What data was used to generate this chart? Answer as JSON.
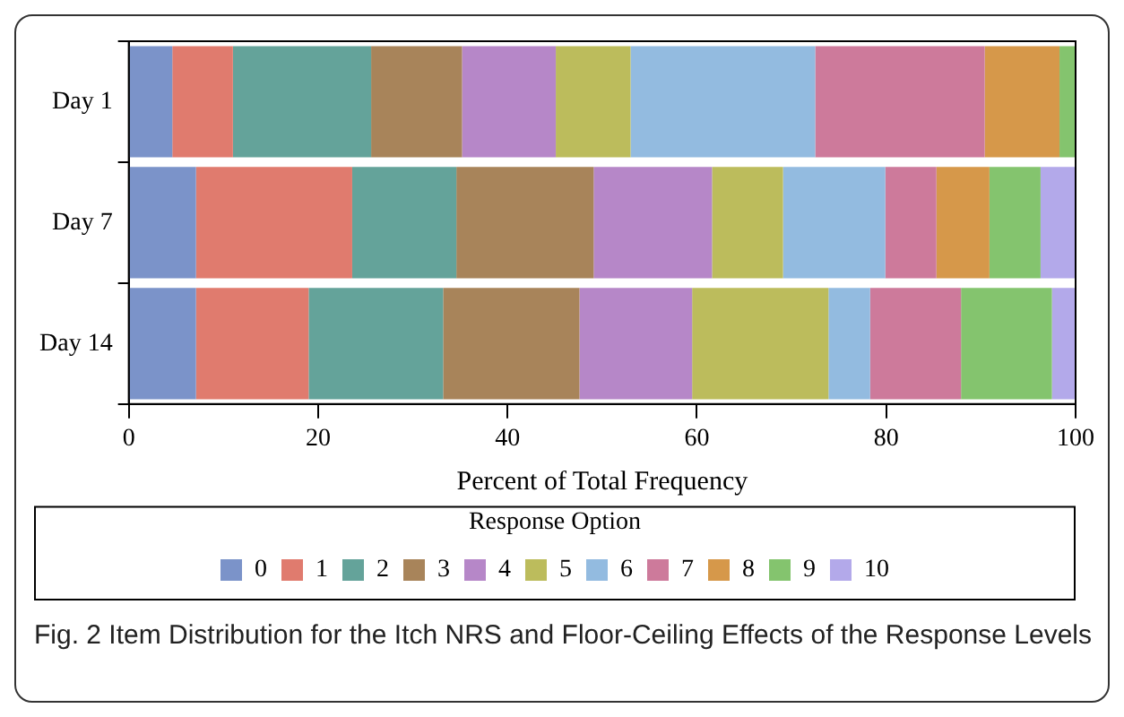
{
  "chart_data": {
    "type": "bar",
    "orientation": "horizontal",
    "stacked": true,
    "categories": [
      "Day 1",
      "Day 7",
      "Day 14"
    ],
    "xlabel": "Percent of Total Frequency",
    "xlim": [
      0,
      100
    ],
    "xticks": [
      0,
      20,
      40,
      60,
      80,
      100
    ],
    "grid": false,
    "legend": "bottom",
    "legend_title": "Response Option",
    "series": [
      {
        "name": "0",
        "color": "#7b93c9",
        "values": [
          4.6,
          7.1,
          7.1
        ]
      },
      {
        "name": "1",
        "color": "#e07b6e",
        "values": [
          6.4,
          16.5,
          11.9
        ]
      },
      {
        "name": "2",
        "color": "#64a39a",
        "values": [
          14.6,
          11.0,
          14.2
        ]
      },
      {
        "name": "3",
        "color": "#a8845a",
        "values": [
          9.6,
          14.5,
          14.4
        ]
      },
      {
        "name": "4",
        "color": "#b687c8",
        "values": [
          9.9,
          12.5,
          11.9
        ]
      },
      {
        "name": "5",
        "color": "#bcbc5c",
        "values": [
          7.9,
          7.5,
          14.4
        ]
      },
      {
        "name": "6",
        "color": "#93bbe0",
        "values": [
          19.5,
          10.8,
          4.4
        ]
      },
      {
        "name": "7",
        "color": "#cd7a9b",
        "values": [
          17.9,
          5.4,
          9.6
        ]
      },
      {
        "name": "8",
        "color": "#d6984a",
        "values": [
          7.9,
          5.6,
          0
        ]
      },
      {
        "name": "9",
        "color": "#84c46e",
        "values": [
          1.7,
          5.4,
          9.6
        ]
      },
      {
        "name": "10",
        "color": "#b3a9ea",
        "values": [
          0,
          3.7,
          2.5
        ]
      }
    ],
    "annotations": [
      "Fig. 2 Item Distribution for the Itch NRS and Floor-Ceiling Effects of the Response Levels"
    ]
  }
}
